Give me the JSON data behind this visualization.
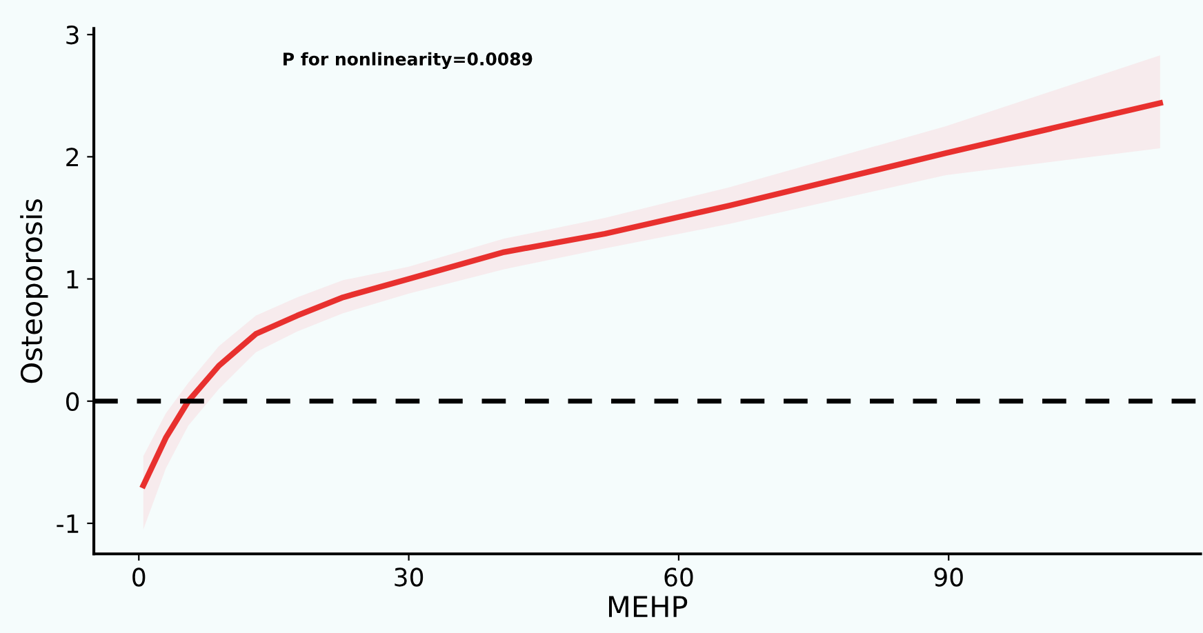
{
  "chart_data": {
    "type": "line",
    "xlabel": "MEHP",
    "ylabel": "Osteoporosis",
    "annotations": [
      "P for nonlinearity=0.0089"
    ],
    "series": [
      {
        "color": "#e8302e",
        "x": [
          0.5,
          3,
          5.5,
          8.9,
          13,
          17.6,
          22.7,
          30,
          40.6,
          51.8,
          65.6,
          89.7,
          113.5
        ],
        "values": [
          -0.69,
          -0.3,
          0.0,
          0.29,
          0.55,
          0.7,
          0.85,
          1.0,
          1.22,
          1.37,
          1.6,
          2.03,
          2.44
        ],
        "lower": [
          -1.05,
          -0.55,
          -0.2,
          0.1,
          0.4,
          0.57,
          0.72,
          0.88,
          1.08,
          1.25,
          1.45,
          1.85,
          2.07
        ],
        "upper": [
          -0.45,
          -0.1,
          0.15,
          0.45,
          0.7,
          0.85,
          0.99,
          1.1,
          1.33,
          1.5,
          1.75,
          2.25,
          2.83
        ]
      }
    ],
    "xlim": [
      -5,
      118
    ],
    "ylim": [
      -1.25,
      3.05
    ],
    "xticks": [
      0,
      30,
      60,
      90
    ],
    "yticks": [
      -1,
      0,
      1,
      2,
      3
    ],
    "ref_lines": [
      {
        "axis": "y",
        "value": 0,
        "color": "#000000",
        "line_style": "dashed"
      }
    ],
    "grid": false,
    "legend": false,
    "marker": "none",
    "line_style": "solid"
  }
}
